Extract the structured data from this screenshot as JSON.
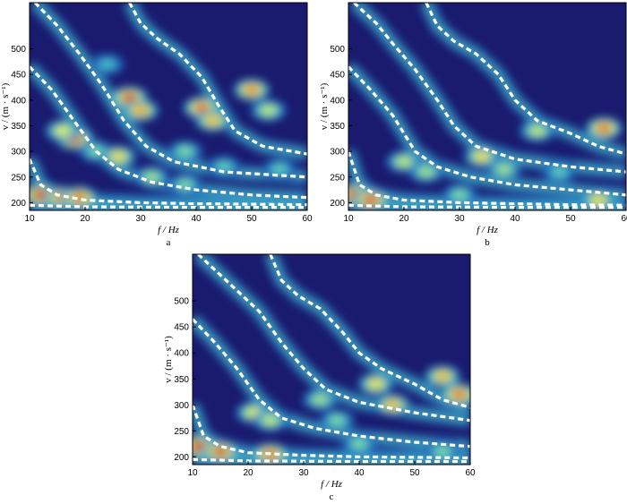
{
  "chart_data": [
    {
      "type": "heatmap",
      "panel_label": "a",
      "xlabel": "f / Hz",
      "ylabel": "v / (m · s⁻¹)",
      "xlim": [
        10,
        60
      ],
      "ylim": [
        185,
        590
      ],
      "x_ticks": [
        10,
        20,
        30,
        40,
        50,
        60
      ],
      "y_ticks": [
        200,
        250,
        300,
        350,
        400,
        450,
        500
      ],
      "colormap": [
        "#1a1a6e",
        "#1f4fb0",
        "#2aa8d8",
        "#7fe0a0",
        "#f2f23c",
        "#f08a1e",
        "#c8141e"
      ],
      "hotspots": [
        {
          "f": 12,
          "v": 215,
          "intensity": 1.0
        },
        {
          "f": 16,
          "v": 210,
          "intensity": 0.95
        },
        {
          "f": 19,
          "v": 210,
          "intensity": 0.9
        },
        {
          "f": 18,
          "v": 325,
          "intensity": 0.95
        },
        {
          "f": 16,
          "v": 340,
          "intensity": 0.65
        },
        {
          "f": 22,
          "v": 300,
          "intensity": 0.5
        },
        {
          "f": 26,
          "v": 290,
          "intensity": 0.7
        },
        {
          "f": 28,
          "v": 405,
          "intensity": 0.95
        },
        {
          "f": 30,
          "v": 380,
          "intensity": 0.8
        },
        {
          "f": 32,
          "v": 250,
          "intensity": 0.55
        },
        {
          "f": 38,
          "v": 235,
          "intensity": 0.5
        },
        {
          "f": 41,
          "v": 385,
          "intensity": 0.9
        },
        {
          "f": 43,
          "v": 360,
          "intensity": 0.75
        },
        {
          "f": 38,
          "v": 300,
          "intensity": 0.5
        },
        {
          "f": 45,
          "v": 270,
          "intensity": 0.45
        },
        {
          "f": 50,
          "v": 420,
          "intensity": 0.85
        },
        {
          "f": 53,
          "v": 380,
          "intensity": 0.6
        },
        {
          "f": 55,
          "v": 265,
          "intensity": 0.45
        },
        {
          "f": 24,
          "v": 470,
          "intensity": 0.4
        }
      ],
      "dashed_curves": [
        [
          [
            10,
            465
          ],
          [
            14,
            420
          ],
          [
            18,
            360
          ],
          [
            22,
            300
          ],
          [
            26,
            265
          ],
          [
            32,
            240
          ],
          [
            40,
            225
          ],
          [
            50,
            215
          ],
          [
            60,
            210
          ]
        ],
        [
          [
            11,
            590
          ],
          [
            15,
            545
          ],
          [
            19,
            490
          ],
          [
            23,
            430
          ],
          [
            27,
            360
          ],
          [
            31,
            310
          ],
          [
            36,
            280
          ],
          [
            45,
            260
          ],
          [
            60,
            250
          ]
        ],
        [
          [
            28,
            590
          ],
          [
            30,
            550
          ],
          [
            33,
            520
          ],
          [
            37,
            490
          ],
          [
            41,
            445
          ],
          [
            44,
            390
          ],
          [
            47,
            340
          ],
          [
            52,
            310
          ],
          [
            60,
            295
          ]
        ],
        [
          [
            10,
            285
          ],
          [
            12,
            235
          ],
          [
            15,
            215
          ],
          [
            20,
            205
          ],
          [
            30,
            200
          ],
          [
            40,
            198
          ],
          [
            50,
            197
          ],
          [
            60,
            196
          ]
        ],
        [
          [
            10,
            195
          ],
          [
            20,
            192
          ],
          [
            40,
            191
          ],
          [
            60,
            191
          ]
        ]
      ]
    },
    {
      "type": "heatmap",
      "panel_label": "b",
      "xlabel": "f / Hz",
      "ylabel": "v / (m · s⁻¹)",
      "xlim": [
        10,
        60
      ],
      "ylim": [
        185,
        590
      ],
      "x_ticks": [
        10,
        20,
        30,
        40,
        50,
        60
      ],
      "y_ticks": [
        200,
        250,
        300,
        350,
        400,
        450,
        500
      ],
      "colormap": [
        "#1a1a6e",
        "#1f4fb0",
        "#2aa8d8",
        "#7fe0a0",
        "#f2f23c",
        "#f08a1e",
        "#c8141e"
      ],
      "hotspots": [
        {
          "f": 11,
          "v": 215,
          "intensity": 1.0
        },
        {
          "f": 14,
          "v": 205,
          "intensity": 0.95
        },
        {
          "f": 20,
          "v": 280,
          "intensity": 0.6
        },
        {
          "f": 24,
          "v": 260,
          "intensity": 0.55
        },
        {
          "f": 30,
          "v": 215,
          "intensity": 0.5
        },
        {
          "f": 34,
          "v": 290,
          "intensity": 0.7
        },
        {
          "f": 38,
          "v": 265,
          "intensity": 0.55
        },
        {
          "f": 44,
          "v": 340,
          "intensity": 0.6
        },
        {
          "f": 56,
          "v": 345,
          "intensity": 0.9
        },
        {
          "f": 48,
          "v": 260,
          "intensity": 0.45
        },
        {
          "f": 55,
          "v": 205,
          "intensity": 0.7
        }
      ],
      "dashed_curves": [
        [
          [
            10,
            465
          ],
          [
            14,
            420
          ],
          [
            18,
            370
          ],
          [
            22,
            300
          ],
          [
            26,
            270
          ],
          [
            32,
            250
          ],
          [
            40,
            235
          ],
          [
            50,
            225
          ],
          [
            60,
            215
          ]
        ],
        [
          [
            11,
            590
          ],
          [
            15,
            550
          ],
          [
            18,
            510
          ],
          [
            22,
            460
          ],
          [
            26,
            400
          ],
          [
            29,
            350
          ],
          [
            33,
            310
          ],
          [
            40,
            285
          ],
          [
            50,
            270
          ],
          [
            60,
            260
          ]
        ],
        [
          [
            24,
            590
          ],
          [
            26,
            545
          ],
          [
            29,
            515
          ],
          [
            33,
            490
          ],
          [
            37,
            450
          ],
          [
            40,
            400
          ],
          [
            44,
            360
          ],
          [
            50,
            335
          ],
          [
            55,
            310
          ],
          [
            60,
            295
          ]
        ],
        [
          [
            10,
            300
          ],
          [
            12,
            235
          ],
          [
            15,
            215
          ],
          [
            20,
            205
          ],
          [
            30,
            200
          ],
          [
            40,
            198
          ],
          [
            50,
            196
          ],
          [
            60,
            195
          ]
        ],
        [
          [
            10,
            195
          ],
          [
            20,
            192
          ],
          [
            40,
            191
          ],
          [
            60,
            191
          ]
        ]
      ]
    },
    {
      "type": "heatmap",
      "panel_label": "c",
      "xlabel": "f / Hz",
      "ylabel": "v / (m · s⁻¹)",
      "xlim": [
        10,
        60
      ],
      "ylim": [
        185,
        590
      ],
      "x_ticks": [
        10,
        20,
        30,
        40,
        50,
        60
      ],
      "y_ticks": [
        200,
        250,
        300,
        350,
        400,
        450,
        500
      ],
      "colormap": [
        "#1a1a6e",
        "#1f4fb0",
        "#2aa8d8",
        "#7fe0a0",
        "#f2f23c",
        "#f08a1e",
        "#c8141e"
      ],
      "hotspots": [
        {
          "f": 11,
          "v": 220,
          "intensity": 1.0
        },
        {
          "f": 15,
          "v": 210,
          "intensity": 0.95
        },
        {
          "f": 24,
          "v": 205,
          "intensity": 0.9
        },
        {
          "f": 21,
          "v": 285,
          "intensity": 0.65
        },
        {
          "f": 24,
          "v": 270,
          "intensity": 0.6
        },
        {
          "f": 33,
          "v": 310,
          "intensity": 0.55
        },
        {
          "f": 36,
          "v": 270,
          "intensity": 0.5
        },
        {
          "f": 43,
          "v": 340,
          "intensity": 0.7
        },
        {
          "f": 46,
          "v": 300,
          "intensity": 0.75
        },
        {
          "f": 58,
          "v": 320,
          "intensity": 0.9
        },
        {
          "f": 55,
          "v": 355,
          "intensity": 0.75
        },
        {
          "f": 40,
          "v": 225,
          "intensity": 0.5
        },
        {
          "f": 55,
          "v": 210,
          "intensity": 0.5
        }
      ],
      "dashed_curves": [
        [
          [
            10,
            465
          ],
          [
            14,
            420
          ],
          [
            18,
            370
          ],
          [
            22,
            310
          ],
          [
            26,
            275
          ],
          [
            32,
            255
          ],
          [
            40,
            240
          ],
          [
            50,
            228
          ],
          [
            60,
            220
          ]
        ],
        [
          [
            11,
            590
          ],
          [
            15,
            550
          ],
          [
            18,
            520
          ],
          [
            22,
            480
          ],
          [
            26,
            420
          ],
          [
            30,
            370
          ],
          [
            34,
            330
          ],
          [
            40,
            305
          ],
          [
            50,
            285
          ],
          [
            60,
            270
          ]
        ],
        [
          [
            24,
            590
          ],
          [
            26,
            540
          ],
          [
            29,
            510
          ],
          [
            33,
            485
          ],
          [
            37,
            440
          ],
          [
            40,
            400
          ],
          [
            44,
            370
          ],
          [
            50,
            340
          ],
          [
            55,
            310
          ],
          [
            60,
            295
          ]
        ],
        [
          [
            10,
            300
          ],
          [
            12,
            240
          ],
          [
            15,
            220
          ],
          [
            20,
            208
          ],
          [
            30,
            203
          ],
          [
            40,
            200
          ],
          [
            50,
            199
          ],
          [
            60,
            198
          ]
        ],
        [
          [
            10,
            195
          ],
          [
            20,
            192
          ],
          [
            40,
            191
          ],
          [
            60,
            191
          ]
        ]
      ]
    }
  ]
}
